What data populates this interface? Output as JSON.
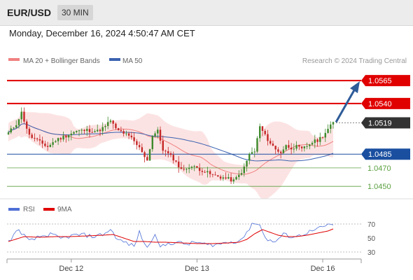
{
  "header": {
    "symbol": "EUR/USD",
    "timeframe": "30 MIN"
  },
  "datetime": "Monday, December 16, 2024 4:50:47 AM CET",
  "legend": {
    "bollinger": "MA 20 + Bollinger Bands",
    "ma50": "MA 50",
    "credit": "Research © 2024 Trading Central",
    "rsi": "RSI",
    "rsi_ma": "9MA"
  },
  "colors": {
    "up": "#3e8a2c",
    "down": "#c62828",
    "ma20": "#f08080",
    "ma50": "#3a62b0",
    "resistance": "#e00000",
    "support": "#1a4fa0",
    "support_green": "#5aa040",
    "last": "#333333",
    "arrow": "#2e5c99",
    "rsi": "#4d6fd6",
    "rsi_ma": "#e00000"
  },
  "chart_data": [
    {
      "type": "candlestick",
      "title": "EUR/USD 30 MIN",
      "ylim": [
        1.0441,
        1.0578
      ],
      "x_ticks": [
        "Dec 12",
        "Dec 13",
        "Dec 16"
      ],
      "levels": [
        {
          "label": "1.0565",
          "value": 1.0565,
          "kind": "resistance"
        },
        {
          "label": "1.0540",
          "value": 1.054,
          "kind": "resistance"
        },
        {
          "label": "1.0519",
          "value": 1.0519,
          "kind": "last"
        },
        {
          "label": "1.0485",
          "value": 1.0485,
          "kind": "support"
        },
        {
          "label": "1.0470",
          "value": 1.047,
          "kind": "support-minor"
        },
        {
          "label": "1.0450",
          "value": 1.045,
          "kind": "support-minor"
        }
      ],
      "arrow": {
        "from": 1.0519,
        "to": 1.0565,
        "direction": "up"
      },
      "anchors": [
        [
          0,
          1.0508
        ],
        [
          3,
          1.0518
        ],
        [
          5,
          1.053
        ],
        [
          8,
          1.0505
        ],
        [
          12,
          1.0498
        ],
        [
          15,
          1.0493
        ],
        [
          18,
          1.05
        ],
        [
          22,
          1.0505
        ],
        [
          26,
          1.051
        ],
        [
          30,
          1.0511
        ],
        [
          34,
          1.051
        ],
        [
          37,
          1.0515
        ],
        [
          39,
          1.0522
        ],
        [
          41,
          1.0512
        ],
        [
          44,
          1.0508
        ],
        [
          47,
          1.0502
        ],
        [
          49,
          1.0495
        ],
        [
          51,
          1.0488
        ],
        [
          53,
          1.0478
        ],
        [
          55,
          1.0505
        ],
        [
          57,
          1.051
        ],
        [
          59,
          1.049
        ],
        [
          61,
          1.0485
        ],
        [
          63,
          1.048
        ],
        [
          65,
          1.0472
        ],
        [
          67,
          1.0467
        ],
        [
          69,
          1.0472
        ],
        [
          72,
          1.047
        ],
        [
          75,
          1.0466
        ],
        [
          78,
          1.0462
        ],
        [
          81,
          1.046
        ],
        [
          84,
          1.0458
        ],
        [
          86,
          1.0456
        ],
        [
          88,
          1.0462
        ],
        [
          90,
          1.047
        ],
        [
          92,
          1.0485
        ],
        [
          94,
          1.0488
        ],
        [
          96,
          1.0515
        ],
        [
          98,
          1.0505
        ],
        [
          100,
          1.0497
        ],
        [
          102,
          1.049
        ],
        [
          104,
          1.0487
        ],
        [
          106,
          1.0494
        ],
        [
          108,
          1.0492
        ],
        [
          110,
          1.0493
        ],
        [
          112,
          1.049
        ],
        [
          114,
          1.0494
        ],
        [
          116,
          1.0498
        ],
        [
          118,
          1.05
        ],
        [
          120,
          1.0505
        ],
        [
          122,
          1.0512
        ],
        [
          124,
          1.0519
        ]
      ]
    },
    {
      "type": "line",
      "title": "RSI",
      "ylim": [
        20,
        80
      ],
      "y_ticks": [
        "70",
        "50",
        "30"
      ],
      "series": [
        {
          "name": "RSI",
          "anchors": [
            [
              0,
              45
            ],
            [
              4,
              62
            ],
            [
              8,
              45
            ],
            [
              12,
              52
            ],
            [
              16,
              55
            ],
            [
              20,
              49
            ],
            [
              24,
              53
            ],
            [
              28,
              55
            ],
            [
              32,
              52
            ],
            [
              36,
              55
            ],
            [
              39,
              62
            ],
            [
              42,
              47
            ],
            [
              45,
              43
            ],
            [
              48,
              38
            ],
            [
              50,
              58
            ],
            [
              53,
              35
            ],
            [
              56,
              58
            ],
            [
              58,
              36
            ],
            [
              61,
              42
            ],
            [
              64,
              44
            ],
            [
              68,
              41
            ],
            [
              72,
              44
            ],
            [
              76,
              40
            ],
            [
              80,
              41
            ],
            [
              84,
              44
            ],
            [
              88,
              46
            ],
            [
              91,
              56
            ],
            [
              93,
              72
            ],
            [
              96,
              68
            ],
            [
              99,
              46
            ],
            [
              102,
              45
            ],
            [
              105,
              55
            ],
            [
              108,
              52
            ],
            [
              111,
              53
            ],
            [
              114,
              58
            ],
            [
              117,
              61
            ],
            [
              121,
              67
            ],
            [
              124,
              70
            ]
          ]
        },
        {
          "name": "9MA",
          "anchors": [
            [
              0,
              45
            ],
            [
              6,
              52
            ],
            [
              12,
              51
            ],
            [
              18,
              52
            ],
            [
              24,
              52
            ],
            [
              30,
              53
            ],
            [
              36,
              54
            ],
            [
              40,
              55
            ],
            [
              44,
              50
            ],
            [
              48,
              45
            ],
            [
              52,
              45
            ],
            [
              56,
              44
            ],
            [
              60,
              44
            ],
            [
              66,
              43
            ],
            [
              72,
              42
            ],
            [
              78,
              42
            ],
            [
              84,
              43
            ],
            [
              88,
              44
            ],
            [
              91,
              48
            ],
            [
              94,
              56
            ],
            [
              97,
              62
            ],
            [
              100,
              58
            ],
            [
              103,
              54
            ],
            [
              106,
              52
            ],
            [
              110,
              52
            ],
            [
              114,
              54
            ],
            [
              118,
              57
            ],
            [
              122,
              60
            ],
            [
              124,
              63
            ]
          ]
        }
      ]
    }
  ]
}
